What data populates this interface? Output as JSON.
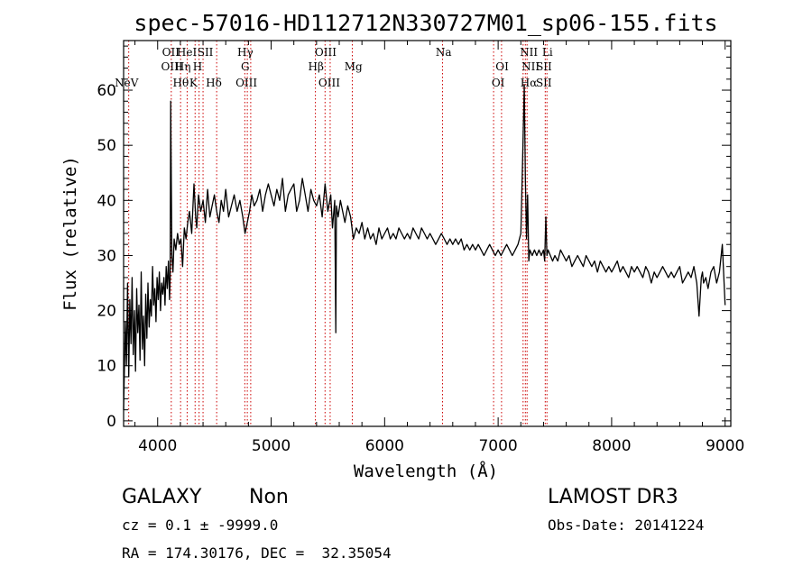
{
  "chart_data": {
    "type": "line",
    "title": "spec-57016-HD112712N330727M01_sp06-155.fits",
    "xlabel": "Wavelength (Å)",
    "ylabel": "Flux (relative)",
    "xlim": [
      3700,
      9050
    ],
    "ylim": [
      -1,
      69
    ],
    "xticks": [
      4000,
      5000,
      6000,
      7000,
      8000,
      9000
    ],
    "yticks": [
      0,
      10,
      20,
      30,
      40,
      50,
      60
    ],
    "line_color": "#000000",
    "marker_color": "#cc0000",
    "series": [
      {
        "x": [
          3700,
          3715,
          3725,
          3735,
          3745,
          3755,
          3765,
          3775,
          3785,
          3795,
          3805,
          3815,
          3825,
          3835,
          3845,
          3855,
          3865,
          3875,
          3885,
          3895,
          3905,
          3915,
          3925,
          3935,
          3945,
          3955,
          3965,
          3975,
          3985,
          3995,
          4005,
          4015,
          4025,
          4035,
          4045,
          4055,
          4065,
          4075,
          4085,
          4095,
          4105,
          4110,
          4115,
          4125,
          4135,
          4145,
          4160,
          4175,
          4190,
          4205,
          4220,
          4235,
          4250,
          4265,
          4280,
          4300,
          4320,
          4335,
          4345,
          4360,
          4380,
          4400,
          4420,
          4440,
          4460,
          4480,
          4500,
          4520,
          4540,
          4560,
          4580,
          4600,
          4625,
          4650,
          4675,
          4700,
          4725,
          4750,
          4770,
          4790,
          4810,
          4830,
          4850,
          4875,
          4900,
          4925,
          4950,
          4975,
          5000,
          5025,
          5050,
          5075,
          5100,
          5125,
          5150,
          5175,
          5200,
          5225,
          5250,
          5275,
          5300,
          5325,
          5350,
          5375,
          5400,
          5425,
          5450,
          5475,
          5500,
          5525,
          5540,
          5560,
          5570,
          5575,
          5590,
          5610,
          5630,
          5650,
          5675,
          5700,
          5725,
          5750,
          5775,
          5800,
          5825,
          5850,
          5875,
          5900,
          5925,
          5950,
          5975,
          6000,
          6025,
          6050,
          6075,
          6100,
          6125,
          6150,
          6175,
          6200,
          6225,
          6250,
          6275,
          6300,
          6325,
          6350,
          6375,
          6400,
          6425,
          6450,
          6475,
          6500,
          6525,
          6550,
          6575,
          6600,
          6625,
          6650,
          6675,
          6700,
          6725,
          6750,
          6775,
          6800,
          6825,
          6850,
          6875,
          6900,
          6925,
          6950,
          6975,
          7000,
          7025,
          7050,
          7075,
          7100,
          7125,
          7150,
          7175,
          7200,
          7215,
          7230,
          7240,
          7250,
          7260,
          7270,
          7280,
          7300,
          7320,
          7340,
          7360,
          7380,
          7400,
          7410,
          7420,
          7430,
          7440,
          7460,
          7480,
          7500,
          7525,
          7550,
          7575,
          7600,
          7625,
          7650,
          7675,
          7700,
          7725,
          7750,
          7775,
          7800,
          7825,
          7850,
          7875,
          7900,
          7925,
          7950,
          7975,
          8000,
          8025,
          8050,
          8075,
          8100,
          8125,
          8150,
          8175,
          8200,
          8225,
          8250,
          8275,
          8300,
          8325,
          8350,
          8375,
          8400,
          8425,
          8450,
          8475,
          8500,
          8525,
          8550,
          8575,
          8600,
          8625,
          8650,
          8675,
          8700,
          8725,
          8750,
          8770,
          8790,
          8800,
          8810,
          8830,
          8850,
          8875,
          8900,
          8925,
          8950,
          8975,
          9000
        ],
        "y": [
          2,
          18,
          10,
          25,
          8,
          22,
          14,
          26,
          12,
          20,
          9,
          24,
          16,
          21,
          11,
          27,
          13,
          19,
          10,
          23,
          15,
          25,
          17,
          22,
          19,
          28,
          21,
          24,
          18,
          26,
          22,
          27,
          20,
          25,
          23,
          26,
          21,
          28,
          24,
          29,
          22,
          26,
          58,
          30,
          27,
          33,
          31,
          34,
          32,
          33,
          28,
          35,
          33,
          36,
          38,
          34,
          43,
          37,
          35,
          41,
          38,
          40,
          36,
          42,
          37,
          39,
          41,
          38,
          36,
          40,
          38,
          42,
          37,
          39,
          41,
          38,
          40,
          37,
          34,
          36,
          38,
          41,
          39,
          40,
          42,
          38,
          41,
          43,
          41,
          39,
          42,
          40,
          44,
          38,
          41,
          42,
          43,
          38,
          40,
          44,
          41,
          38,
          42,
          40,
          39,
          41,
          37,
          43,
          38,
          41,
          35,
          40,
          16,
          39,
          37,
          40,
          38,
          36,
          39,
          37,
          33,
          35,
          34,
          36,
          33,
          35,
          33,
          34,
          32,
          35,
          33,
          34,
          35,
          33,
          34,
          33,
          35,
          34,
          33,
          34,
          33,
          35,
          34,
          33,
          35,
          34,
          33,
          34,
          33,
          32,
          33,
          34,
          33,
          32,
          33,
          32,
          33,
          32,
          33,
          31,
          32,
          31,
          32,
          31,
          32,
          31,
          30,
          31,
          32,
          31,
          30,
          31,
          30,
          31,
          32,
          31,
          30,
          31,
          32,
          34,
          47,
          61,
          44,
          33,
          41,
          29,
          31,
          30,
          31,
          30,
          31,
          30,
          31,
          29,
          37,
          30,
          31,
          30,
          29,
          30,
          29,
          31,
          30,
          29,
          30,
          28,
          29,
          30,
          29,
          28,
          30,
          29,
          28,
          29,
          27,
          29,
          28,
          27,
          28,
          27,
          28,
          29,
          27,
          28,
          27,
          26,
          28,
          27,
          28,
          27,
          26,
          28,
          27,
          25,
          27,
          26,
          27,
          28,
          27,
          26,
          27,
          26,
          27,
          28,
          25,
          26,
          27,
          26,
          28,
          25,
          19,
          26,
          27,
          25,
          26,
          24,
          27,
          28,
          25,
          27,
          32,
          21
        ]
      }
    ],
    "spectral_lines": [
      {
        "label": "NeV",
        "x": 3726,
        "row": 3
      },
      {
        "label": "OII",
        "x": 4116,
        "row": 1
      },
      {
        "label": "OIII",
        "x": 4126,
        "row": 2
      },
      {
        "label": "Hθ",
        "x": 4204,
        "row": 3
      },
      {
        "label": "HeI",
        "x": 4257,
        "row": 1
      },
      {
        "label": "Hη",
        "x": 4222,
        "row": 2
      },
      {
        "label": "H",
        "x": 4352,
        "row": 2
      },
      {
        "label": "K",
        "x": 4315,
        "row": 3
      },
      {
        "label": "SII",
        "x": 4420,
        "row": 1
      },
      {
        "label": "Hδ",
        "x": 4495,
        "row": 3
      },
      {
        "label": "Hγ",
        "x": 4772,
        "row": 1
      },
      {
        "label": "G",
        "x": 4772,
        "row": 2
      },
      {
        "label": "OIII",
        "x": 4782,
        "row": 3
      },
      {
        "label": "OIII",
        "x": 5480,
        "row": 1
      },
      {
        "label": "Hβ",
        "x": 5395,
        "row": 2
      },
      {
        "label": "OIII",
        "x": 5512,
        "row": 3
      },
      {
        "label": "Mg",
        "x": 5725,
        "row": 2
      },
      {
        "label": "Na",
        "x": 6520,
        "row": 1
      },
      {
        "label": "OI",
        "x": 7035,
        "row": 2
      },
      {
        "label": "OI",
        "x": 7000,
        "row": 3
      },
      {
        "label": "NII",
        "x": 7270,
        "row": 1
      },
      {
        "label": "NII",
        "x": 7286,
        "row": 2
      },
      {
        "label": "Hα",
        "x": 7270,
        "row": 3
      },
      {
        "label": "Li",
        "x": 7435,
        "row": 1
      },
      {
        "label": "SII",
        "x": 7404,
        "row": 2
      },
      {
        "label": "SII",
        "x": 7403,
        "row": 3
      }
    ],
    "marker_lines_x": [
      3745,
      4120,
      4202,
      4260,
      4330,
      4365,
      4400,
      4520,
      4768,
      4790,
      4820,
      5390,
      5475,
      5520,
      5715,
      6510,
      6960,
      7030,
      7220,
      7240,
      7255,
      7415,
      7430
    ]
  },
  "footer": {
    "object_class": "GALAXY",
    "subclass": "Non",
    "survey": "LAMOST DR3",
    "cz": "cz = 0.1 ± -9999.0",
    "obs_date": "Obs-Date: 20141224",
    "coords": "RA = 174.30176, DEC =  32.35054"
  }
}
